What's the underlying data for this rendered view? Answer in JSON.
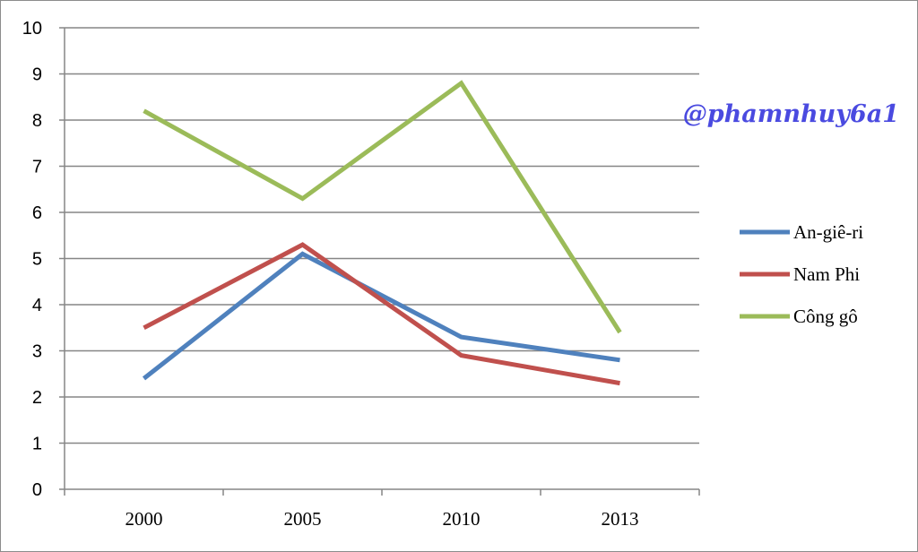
{
  "chart_data": {
    "type": "line",
    "title": "",
    "xlabel": "",
    "ylabel": "",
    "categories": [
      "2000",
      "2005",
      "2010",
      "2013"
    ],
    "ylim": [
      0,
      10
    ],
    "yticks": [
      0,
      1,
      2,
      3,
      4,
      5,
      6,
      7,
      8,
      9,
      10
    ],
    "grid": true,
    "legend_position": "right",
    "series": [
      {
        "name": "An-giê-ri",
        "color": "#4f81bd",
        "values": [
          2.4,
          5.1,
          3.3,
          2.8
        ]
      },
      {
        "name": "Nam Phi",
        "color": "#c0504d",
        "values": [
          3.5,
          5.3,
          2.9,
          2.3
        ]
      },
      {
        "name": "Công gô",
        "color": "#9bbb59",
        "values": [
          8.2,
          6.3,
          8.8,
          3.4
        ]
      }
    ],
    "watermark": "@phamnhuy6a1"
  }
}
